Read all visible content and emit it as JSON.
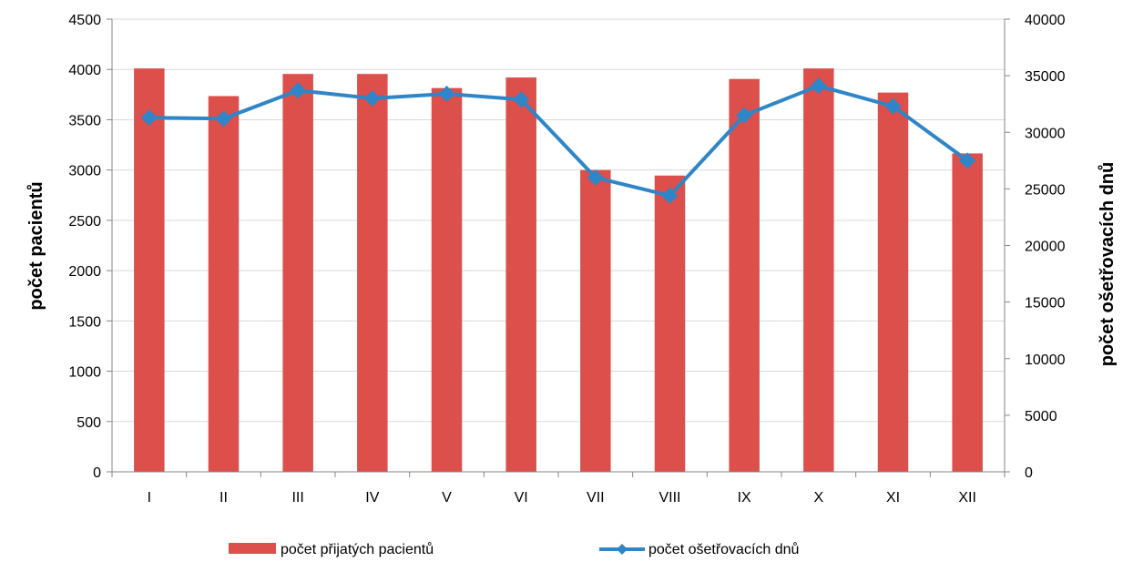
{
  "chart_data": {
    "type": "bar",
    "categories": [
      "I",
      "II",
      "III",
      "IV",
      "V",
      "VI",
      "VII",
      "VIII",
      "IX",
      "X",
      "XI",
      "XII"
    ],
    "series": [
      {
        "name": "počet přijatých pacientů",
        "type": "bar",
        "axis": "left",
        "color": "#dc4f4b",
        "values": [
          4010,
          3735,
          3955,
          3955,
          3815,
          3920,
          3000,
          2945,
          3905,
          4010,
          3770,
          3165
        ]
      },
      {
        "name": "počet ošetřovacích dnů",
        "type": "line",
        "axis": "right",
        "color": "#2e86c8",
        "marker": "diamond",
        "values": [
          31300,
          31200,
          33700,
          33000,
          33400,
          32900,
          26000,
          24400,
          31500,
          34100,
          32300,
          27500
        ]
      }
    ],
    "ylabel": "počet pacientů",
    "y2label": "počet ošetřovacích dnů",
    "ylim": [
      0,
      4500
    ],
    "y2lim": [
      0,
      40000
    ],
    "yticks": [
      0,
      500,
      1000,
      1500,
      2000,
      2500,
      3000,
      3500,
      4000,
      4500
    ],
    "y2ticks": [
      0,
      5000,
      10000,
      15000,
      20000,
      25000,
      30000,
      35000,
      40000
    ],
    "grid": true,
    "legend": "bottom"
  }
}
